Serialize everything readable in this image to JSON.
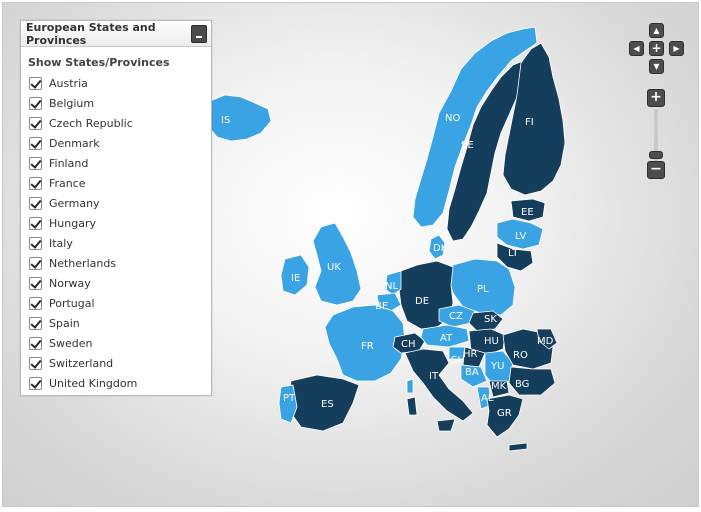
{
  "panel": {
    "title": "European States and Provinces",
    "subtitle": "Show States/Provinces",
    "items": [
      {
        "label": "Austria",
        "checked": true
      },
      {
        "label": "Belgium",
        "checked": true
      },
      {
        "label": "Czech Republic",
        "checked": true
      },
      {
        "label": "Denmark",
        "checked": true
      },
      {
        "label": "Finland",
        "checked": true
      },
      {
        "label": "France",
        "checked": true
      },
      {
        "label": "Germany",
        "checked": true
      },
      {
        "label": "Hungary",
        "checked": true
      },
      {
        "label": "Italy",
        "checked": true
      },
      {
        "label": "Netherlands",
        "checked": true
      },
      {
        "label": "Norway",
        "checked": true
      },
      {
        "label": "Portugal",
        "checked": true
      },
      {
        "label": "Spain",
        "checked": true
      },
      {
        "label": "Sweden",
        "checked": true
      },
      {
        "label": "Switzerland",
        "checked": true
      },
      {
        "label": "United Kingdom",
        "checked": true
      }
    ]
  },
  "nav": {
    "up": "▲",
    "down": "▼",
    "left": "◀",
    "right": "▶",
    "center": "+"
  },
  "zoom": {
    "plus": "+",
    "minus": "−"
  },
  "colors": {
    "light": "#3aa3e3",
    "dark": "#143e5c",
    "border": "#ffffff"
  },
  "map": {
    "labels": {
      "IS": "IS",
      "NO": "NO",
      "SE": "SE",
      "FI": "FI",
      "EE": "EE",
      "LV": "LV",
      "LT": "LT",
      "PL": "PL",
      "DE": "DE",
      "UK": "UK",
      "IE": "IE",
      "FR": "FR",
      "ES": "ES",
      "CH": "CH",
      "IT": "IT",
      "AT": "AT",
      "CZ": "CZ",
      "SK": "SK",
      "HU": "HU",
      "RO": "RO",
      "MD": "MD",
      "BG": "BG",
      "YU": "YU",
      "BA": "BA",
      "HR": "HR",
      "SI": "SI",
      "MK": "MK",
      "AL": "AL",
      "GR": "GR",
      "BE": "BE",
      "NL": "NL",
      "DK": "DK",
      "PT": "PT"
    }
  }
}
